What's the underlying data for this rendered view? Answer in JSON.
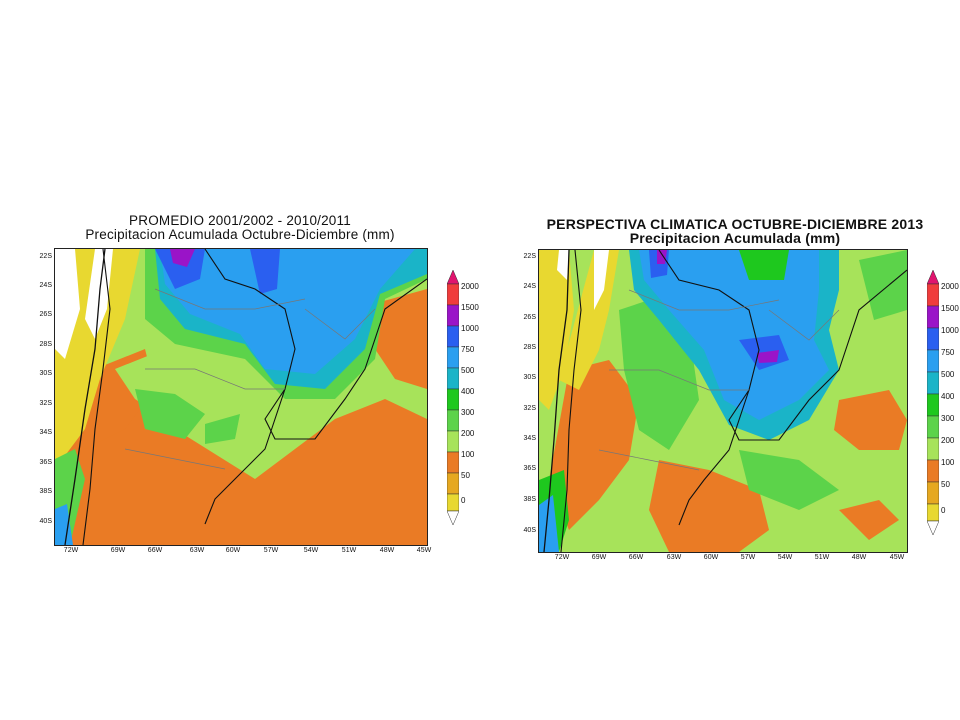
{
  "left_panel": {
    "title_line1": "PROMEDIO 2001/2002 - 2010/2011",
    "title_line2": "Precipitacion Acumulada Octubre-Diciembre (mm)",
    "lat_labels": [
      "22S",
      "24S",
      "26S",
      "28S",
      "30S",
      "32S",
      "34S",
      "36S",
      "38S",
      "40S"
    ],
    "lon_labels": [
      "72W",
      "69W",
      "66W",
      "63W",
      "60W",
      "57W",
      "54W",
      "51W",
      "48W",
      "45W"
    ],
    "colorbar_labels": [
      "2000",
      "1500",
      "1000",
      "750",
      "500",
      "400",
      "300",
      "200",
      "100",
      "50",
      "0"
    ]
  },
  "right_panel": {
    "title_line1": "PERSPECTIVA CLIMATICA OCTUBRE-DICIEMBRE 2013",
    "title_line2": "Precipitacion Acumulada (mm)",
    "lat_labels": [
      "22S",
      "24S",
      "26S",
      "28S",
      "30S",
      "32S",
      "34S",
      "36S",
      "38S",
      "40S"
    ],
    "lon_labels": [
      "72W",
      "69W",
      "66W",
      "63W",
      "60W",
      "57W",
      "54W",
      "51W",
      "48W",
      "45W"
    ],
    "colorbar_labels": [
      "2000",
      "1500",
      "1000",
      "750",
      "500",
      "400",
      "300",
      "200",
      "100",
      "50",
      "0"
    ]
  },
  "colors": {
    "c0": "#ffffff",
    "c50": "#e8d830",
    "c100": "#e6a820",
    "c200": "#ea7b25",
    "c300": "#a7e35a",
    "c400": "#5cd34a",
    "c500": "#1ec81e",
    "c750": "#1ab4c8",
    "c1000": "#2a9ff0",
    "c1500": "#2a5ff0",
    "c2000": "#9a14c8",
    "ctop1": "#e0146e",
    "ctop2": "#f03c3c"
  }
}
